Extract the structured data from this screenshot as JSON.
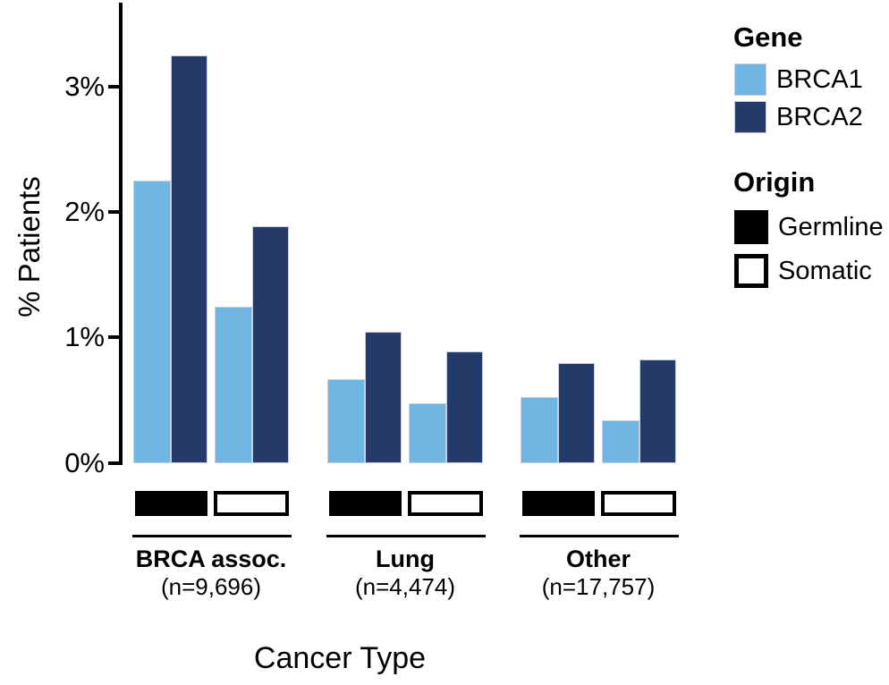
{
  "figure": {
    "y_axis_label": "% Patients",
    "x_axis_label": "Cancer Type"
  },
  "legend": {
    "gene_title": "Gene",
    "gene_items": [
      {
        "label": "BRCA1",
        "color": "#6FB7E2"
      },
      {
        "label": "BRCA2",
        "color": "#243A68"
      }
    ],
    "origin_title": "Origin",
    "origin_items": [
      {
        "label": "Germline",
        "fill": "#000000"
      },
      {
        "label": "Somatic",
        "fill": "#FFFFFF"
      }
    ]
  },
  "chart_data": {
    "type": "bar",
    "title": "",
    "xlabel": "Cancer Type",
    "ylabel": "% Patients",
    "ylim": [
      0,
      3.6
    ],
    "grid": false,
    "legend_position": "right",
    "yticks": [
      {
        "value": 0,
        "label": "0%"
      },
      {
        "value": 1,
        "label": "1%"
      },
      {
        "value": 2,
        "label": "2%"
      },
      {
        "value": 3,
        "label": "3%"
      }
    ],
    "series_colors": {
      "BRCA1": "#6FB7E2",
      "BRCA2": "#243A68"
    },
    "origin_colors": {
      "Germline": "#000000",
      "Somatic": "#FFFFFF"
    },
    "groups": [
      {
        "category": "BRCA assoc.",
        "n_label": "(n=9,696)",
        "bars": [
          {
            "gene": "BRCA1",
            "origin": "Germline",
            "value": 2.25
          },
          {
            "gene": "BRCA2",
            "origin": "Germline",
            "value": 3.25
          },
          {
            "gene": "BRCA1",
            "origin": "Somatic",
            "value": 1.25
          },
          {
            "gene": "BRCA2",
            "origin": "Somatic",
            "value": 1.89
          }
        ]
      },
      {
        "category": "Lung",
        "n_label": "(n=4,474)",
        "bars": [
          {
            "gene": "BRCA1",
            "origin": "Germline",
            "value": 0.67
          },
          {
            "gene": "BRCA2",
            "origin": "Germline",
            "value": 1.05
          },
          {
            "gene": "BRCA1",
            "origin": "Somatic",
            "value": 0.48
          },
          {
            "gene": "BRCA2",
            "origin": "Somatic",
            "value": 0.89
          }
        ]
      },
      {
        "category": "Other",
        "n_label": "(n=17,757)",
        "bars": [
          {
            "gene": "BRCA1",
            "origin": "Germline",
            "value": 0.53
          },
          {
            "gene": "BRCA2",
            "origin": "Germline",
            "value": 0.8
          },
          {
            "gene": "BRCA1",
            "origin": "Somatic",
            "value": 0.34
          },
          {
            "gene": "BRCA2",
            "origin": "Somatic",
            "value": 0.83
          }
        ]
      }
    ]
  }
}
